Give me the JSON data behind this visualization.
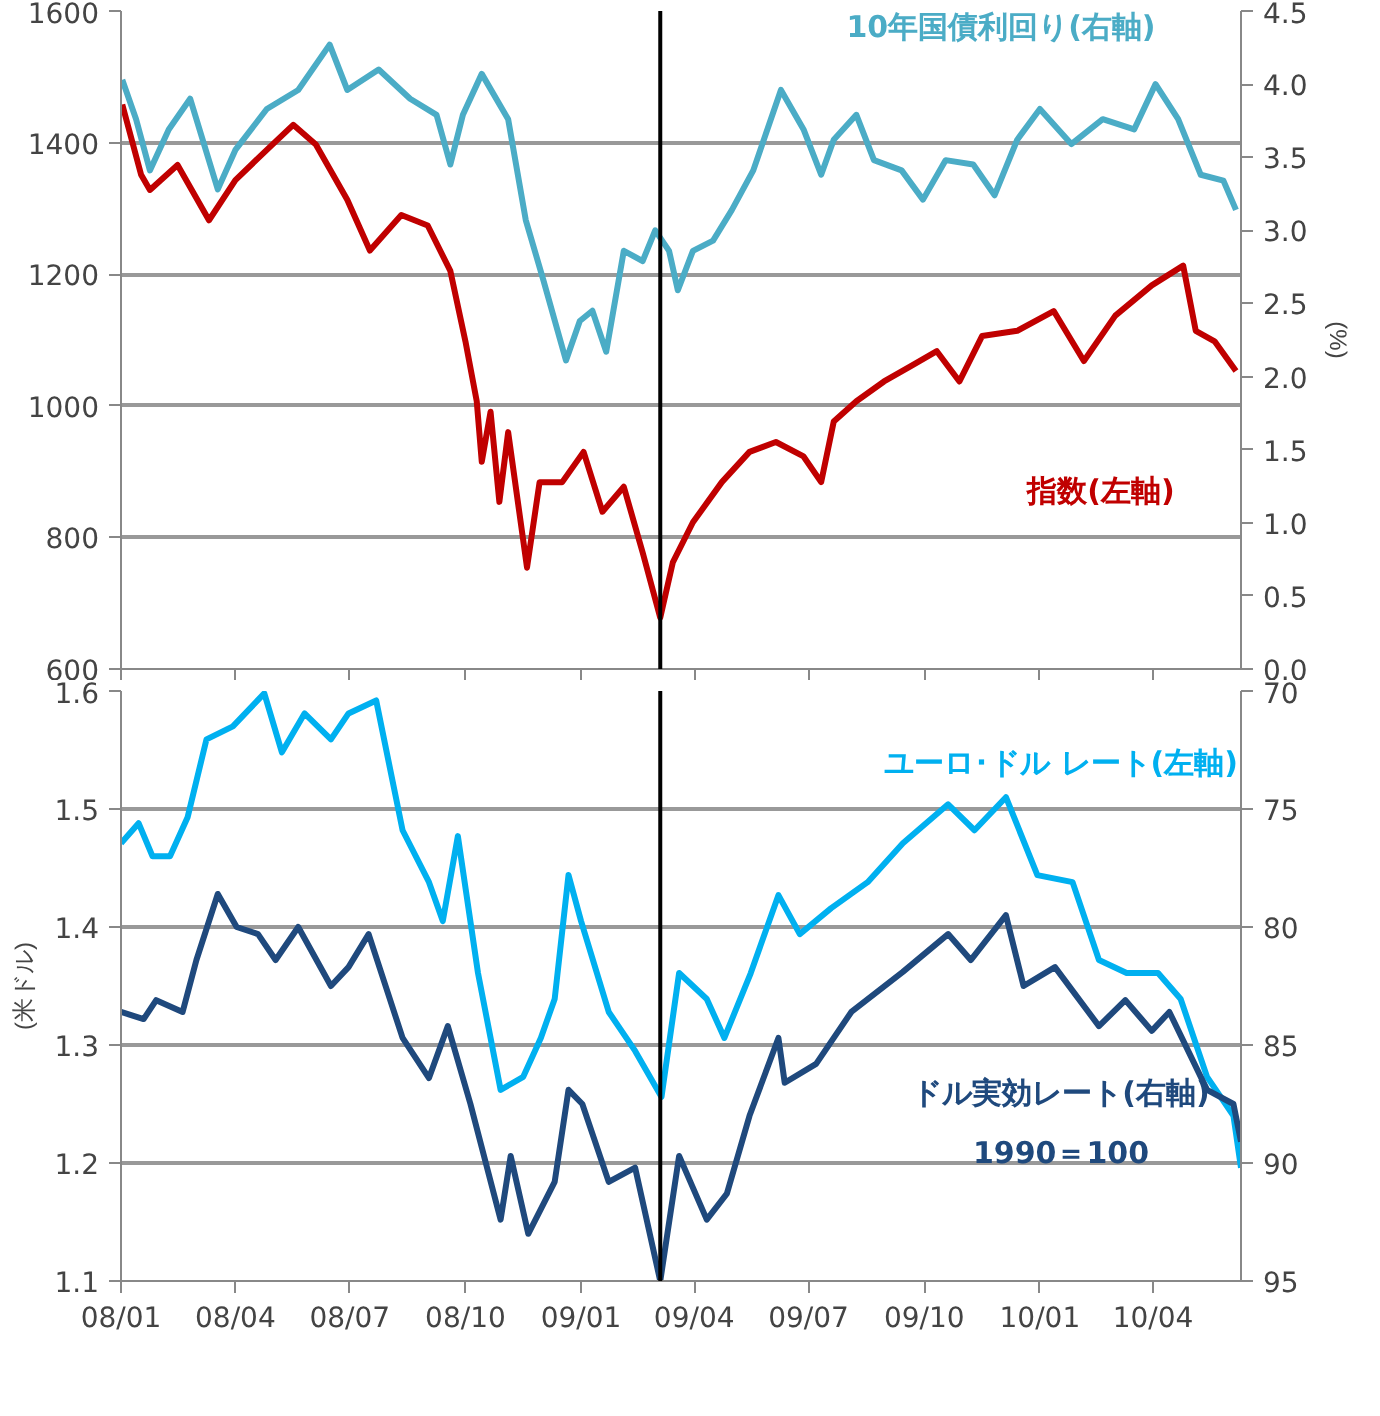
{
  "chart_data": [
    {
      "type": "line",
      "ylabel": null,
      "y2label": "(%)",
      "xlim": [
        "2008-01-01",
        "2010-06-10"
      ],
      "xticks": [
        {
          "value": "2008-01",
          "label": null
        },
        {
          "value": "2008-04",
          "label": null
        },
        {
          "value": "2008-07",
          "label": null
        },
        {
          "value": "2008-10",
          "label": null
        },
        {
          "value": "2009-01",
          "label": null
        },
        {
          "value": "2009-04",
          "label": null
        },
        {
          "value": "2009-07",
          "label": null
        },
        {
          "value": "2009-10",
          "label": null
        },
        {
          "value": "2010-01",
          "label": null
        },
        {
          "value": "2010-04",
          "label": null
        }
      ],
      "ylim": [
        600,
        1600
      ],
      "yticks": [
        600,
        800,
        1000,
        1200,
        1400,
        1600
      ],
      "y2lim": [
        0,
        4.5
      ],
      "y2ticks": [
        {
          "value": 0,
          "label": "0.0"
        },
        {
          "value": 0.5,
          "label": "0.5"
        },
        {
          "value": 1,
          "label": "1.0"
        },
        {
          "value": 1.5,
          "label": "1.5"
        },
        {
          "value": 2,
          "label": "2.0"
        },
        {
          "value": 2.5,
          "label": "2.5"
        },
        {
          "value": 3,
          "label": "3.0"
        },
        {
          "value": 3.5,
          "label": "3.5"
        },
        {
          "value": 4,
          "label": "4.0"
        },
        {
          "value": 4.5,
          "label": "4.5"
        }
      ],
      "grid": "y",
      "legend": false,
      "tick_labels": "y",
      "line_style": "solid",
      "marker": "none",
      "ref_lines": [
        {
          "axis": "x",
          "value": "2009-03-05",
          "label": null,
          "color": "#000000"
        }
      ],
      "series": [
        {
          "name": "10年国債利回り(右軸)",
          "color": "#4bacc6",
          "axis": "y2",
          "x": [
            "2008-01-02",
            "2008-01-13",
            "2008-01-24",
            "2008-02-08",
            "2008-02-25",
            "2008-03-18",
            "2008-04-01",
            "2008-04-26",
            "2008-05-21",
            "2008-06-15",
            "2008-06-29",
            "2008-07-24",
            "2008-08-18",
            "2008-09-08",
            "2008-09-19",
            "2008-09-29",
            "2008-10-14",
            "2008-11-04",
            "2008-11-18",
            "2008-12-02",
            "2008-12-20",
            "2008-12-31",
            "2009-01-10",
            "2009-01-21",
            "2009-02-04",
            "2009-02-19",
            "2009-03-01",
            "2009-03-12",
            "2009-03-19",
            "2009-03-31",
            "2009-04-16",
            "2009-05-01",
            "2009-05-18",
            "2009-06-09",
            "2009-06-27",
            "2009-07-11",
            "2009-07-21",
            "2009-08-08",
            "2009-08-22",
            "2009-09-13",
            "2009-09-30",
            "2009-10-18",
            "2009-11-09",
            "2009-11-26",
            "2009-12-14",
            "2010-01-01",
            "2010-01-26",
            "2010-02-20",
            "2010-03-17",
            "2010-04-03",
            "2010-04-21",
            "2010-05-09",
            "2010-05-27",
            "2010-06-06"
          ],
          "values": [
            4.03,
            3.76,
            3.41,
            3.69,
            3.9,
            3.28,
            3.55,
            3.83,
            3.96,
            4.27,
            3.96,
            4.1,
            3.9,
            3.79,
            3.45,
            3.79,
            4.07,
            3.76,
            3.07,
            2.66,
            2.11,
            2.38,
            2.45,
            2.17,
            2.86,
            2.79,
            3.0,
            2.86,
            2.59,
            2.86,
            2.93,
            3.14,
            3.41,
            3.96,
            3.69,
            3.38,
            3.62,
            3.79,
            3.48,
            3.41,
            3.21,
            3.48,
            3.45,
            3.24,
            3.62,
            3.83,
            3.59,
            3.76,
            3.69,
            4.0,
            3.76,
            3.38,
            3.34,
            3.14
          ]
        },
        {
          "name": "指数(左軸)",
          "color": "#c00000",
          "x": [
            "2008-01-02",
            "2008-01-17",
            "2008-01-24",
            "2008-02-15",
            "2008-03-11",
            "2008-04-01",
            "2008-04-26",
            "2008-05-17",
            "2008-06-04",
            "2008-06-29",
            "2008-07-17",
            "2008-08-11",
            "2008-09-01",
            "2008-09-19",
            "2008-10-01",
            "2008-10-10",
            "2008-10-14",
            "2008-10-21",
            "2008-10-28",
            "2008-11-04",
            "2008-11-19",
            "2008-11-29",
            "2008-12-17",
            "2009-01-03",
            "2009-01-18",
            "2009-02-04",
            "2009-02-19",
            "2009-03-05",
            "2009-03-15",
            "2009-03-31",
            "2009-04-23",
            "2009-05-15",
            "2009-06-05",
            "2009-06-27",
            "2009-07-11",
            "2009-07-21",
            "2009-08-08",
            "2009-08-30",
            "2009-09-20",
            "2009-10-11",
            "2009-10-29",
            "2009-11-16",
            "2009-12-14",
            "2010-01-12",
            "2010-02-05",
            "2010-03-02",
            "2010-03-31",
            "2010-04-25",
            "2010-05-05",
            "2010-05-20",
            "2010-06-06"
          ],
          "values": [
            1458,
            1351,
            1328,
            1366,
            1282,
            1343,
            1389,
            1427,
            1397,
            1313,
            1236,
            1290,
            1274,
            1205,
            1098,
            1007,
            915,
            991,
            854,
            960,
            754,
            884,
            884,
            930,
            839,
            877,
            777,
            678,
            762,
            823,
            884,
            930,
            945,
            923,
            884,
            976,
            1007,
            1037,
            1060,
            1083,
            1037,
            1106,
            1114,
            1144,
            1068,
            1137,
            1183,
            1213,
            1114,
            1098,
            1053
          ]
        }
      ]
    },
    {
      "type": "line",
      "ylabel": "(米ドル)",
      "xlim": [
        "2008-01-01",
        "2010-06-10"
      ],
      "xticks": [
        {
          "value": "2008-01",
          "label": "08/01"
        },
        {
          "value": "2008-04",
          "label": "08/04"
        },
        {
          "value": "2008-07",
          "label": "08/07"
        },
        {
          "value": "2008-10",
          "label": "08/10"
        },
        {
          "value": "2009-01",
          "label": "09/01"
        },
        {
          "value": "2009-04",
          "label": "09/04"
        },
        {
          "value": "2009-07",
          "label": "09/07"
        },
        {
          "value": "2009-10",
          "label": "09/10"
        },
        {
          "value": "2010-01",
          "label": "10/01"
        },
        {
          "value": "2010-04",
          "label": "10/04"
        }
      ],
      "ylim": [
        1.1,
        1.6
      ],
      "yticks": [
        1.1,
        1.2,
        1.3,
        1.4,
        1.5,
        1.6
      ],
      "y2lim": [
        95,
        70
      ],
      "y2ticks": [
        70,
        75,
        80,
        85,
        90,
        95
      ],
      "grid": "y",
      "legend": false,
      "line_style": "solid",
      "marker": "none",
      "ref_lines": [
        {
          "axis": "x",
          "value": "2009-03-05",
          "label": null,
          "color": "#000000"
        }
      ],
      "annotations": [
        "1990＝100"
      ],
      "series": [
        {
          "name": "ユーロ･ドル レート(左軸)",
          "color": "#00b0f0",
          "x": [
            "2008-01-01",
            "2008-01-15",
            "2008-01-26",
            "2008-02-09",
            "2008-02-23",
            "2008-03-09",
            "2008-03-30",
            "2008-04-24",
            "2008-05-08",
            "2008-05-26",
            "2008-06-16",
            "2008-06-30",
            "2008-07-22",
            "2008-08-12",
            "2008-09-02",
            "2008-09-13",
            "2008-09-25",
            "2008-10-11",
            "2008-10-29",
            "2008-11-16",
            "2008-11-30",
            "2008-12-11",
            "2008-12-22",
            "2009-01-01",
            "2009-01-23",
            "2009-02-13",
            "2009-03-06",
            "2009-03-20",
            "2009-04-11",
            "2009-04-25",
            "2009-05-16",
            "2009-06-07",
            "2009-06-24",
            "2009-07-19",
            "2009-08-17",
            "2009-09-14",
            "2009-10-20",
            "2009-11-10",
            "2009-12-05",
            "2009-12-30",
            "2010-01-27",
            "2010-02-17",
            "2010-03-11",
            "2010-04-05",
            "2010-04-23",
            "2010-05-14",
            "2010-06-04",
            "2010-06-10"
          ],
          "values": [
            1.471,
            1.488,
            1.46,
            1.46,
            1.493,
            1.559,
            1.57,
            1.598,
            1.548,
            1.581,
            1.559,
            1.581,
            1.592,
            1.482,
            1.438,
            1.405,
            1.477,
            1.361,
            1.262,
            1.273,
            1.306,
            1.339,
            1.444,
            1.405,
            1.328,
            1.295,
            1.256,
            1.361,
            1.339,
            1.306,
            1.361,
            1.427,
            1.394,
            1.416,
            1.438,
            1.471,
            1.504,
            1.482,
            1.51,
            1.444,
            1.438,
            1.372,
            1.361,
            1.361,
            1.339,
            1.273,
            1.24,
            1.196
          ]
        },
        {
          "name": "ドル実効レート(右軸)",
          "color": "#1f497d",
          "axis": "y2",
          "x": [
            "2008-01-01",
            "2008-01-19",
            "2008-01-29",
            "2008-02-19",
            "2008-03-01",
            "2008-03-18",
            "2008-04-02",
            "2008-04-19",
            "2008-05-03",
            "2008-05-21",
            "2008-06-16",
            "2008-06-30",
            "2008-07-16",
            "2008-08-12",
            "2008-09-02",
            "2008-09-17",
            "2008-10-05",
            "2008-10-29",
            "2008-11-06",
            "2008-11-20",
            "2008-12-11",
            "2008-12-22",
            "2009-01-02",
            "2009-01-23",
            "2009-02-13",
            "2009-03-05",
            "2009-03-20",
            "2009-04-11",
            "2009-04-27",
            "2009-05-15",
            "2009-06-07",
            "2009-06-12",
            "2009-07-07",
            "2009-08-04",
            "2009-09-14",
            "2009-10-20",
            "2009-11-07",
            "2009-12-05",
            "2009-12-19",
            "2010-01-13",
            "2010-02-17",
            "2010-03-10",
            "2010-03-31",
            "2010-04-14",
            "2010-05-14",
            "2010-06-04",
            "2010-06-10"
          ],
          "values": [
            83.6,
            83.9,
            83.1,
            83.6,
            81.4,
            78.6,
            80.0,
            80.3,
            81.4,
            80.0,
            82.5,
            81.7,
            80.3,
            84.7,
            86.4,
            84.2,
            87.5,
            92.4,
            89.7,
            93.0,
            90.8,
            86.9,
            87.5,
            90.8,
            90.2,
            95.0,
            89.7,
            92.4,
            91.3,
            88.0,
            84.7,
            86.6,
            85.8,
            83.6,
            81.9,
            80.3,
            81.4,
            79.5,
            82.5,
            81.7,
            84.2,
            83.1,
            84.4,
            83.6,
            86.9,
            87.5,
            89.1
          ]
        }
      ]
    }
  ]
}
